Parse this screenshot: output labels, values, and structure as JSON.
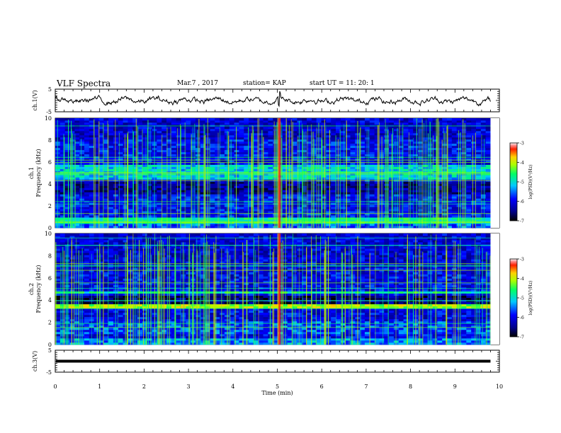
{
  "header": {
    "title": "VLF Spectra",
    "date": "Mar.7 , 2017",
    "station": "station= KAP",
    "start": "start  UT =  11: 20: 1"
  },
  "chart_data": [
    {
      "type": "line",
      "panel": "ch1-waveform",
      "ylabel": "ch.1(V)",
      "ylim": [
        -5,
        5
      ],
      "yticks": [
        "5",
        "-5"
      ],
      "xlim": [
        0,
        10
      ],
      "description_values": {
        "baseline": 0,
        "typical_amplitude": 1.5
      }
    },
    {
      "type": "heatmap",
      "panel": "ch1-spectrogram",
      "ylabel": "ch.1\nFrequency  (kHz)",
      "ylim": [
        0,
        10
      ],
      "yticks": [
        "0",
        "2",
        "4",
        "6",
        "8",
        "10"
      ],
      "xlim": [
        0,
        10
      ],
      "colorbar": {
        "label": "log(PSD)(V²/Hz)",
        "range": [
          -7,
          -3
        ],
        "ticks": [
          "-3",
          "-4",
          "-5",
          "-6",
          "-7"
        ]
      },
      "strong_band_kHz": [
        [
          4.5,
          5.7
        ],
        [
          0,
          1.0
        ]
      ],
      "impulse_minutes": [
        5.05
      ]
    },
    {
      "type": "heatmap",
      "panel": "ch2-spectrogram",
      "ylabel": "ch.2\nFrequency  (kHz)",
      "ylim": [
        0,
        10
      ],
      "yticks": [
        "0",
        "2",
        "4",
        "6",
        "8",
        "10"
      ],
      "xlim": [
        0,
        10
      ],
      "colorbar": {
        "label": "log(PSD)(V²/Hz)",
        "range": [
          -7,
          -3
        ],
        "ticks": [
          "-3",
          "-4",
          "-5",
          "-6",
          "-7"
        ]
      },
      "strong_band_kHz": [
        [
          3.2,
          3.6
        ],
        [
          4.6,
          4.8
        ]
      ],
      "impulse_minutes": [
        5.05
      ]
    },
    {
      "type": "line",
      "panel": "ch3-waveform",
      "ylabel": "ch.3(V)",
      "ylim": [
        -5,
        5
      ],
      "yticks": [
        "5",
        "-5"
      ],
      "xlim": [
        0,
        9.8
      ],
      "values_constant": 0
    }
  ],
  "xaxis": {
    "label": "Time  (min)",
    "ticks": [
      "0",
      "1",
      "2",
      "3",
      "4",
      "5",
      "6",
      "7",
      "8",
      "9",
      "10"
    ]
  }
}
